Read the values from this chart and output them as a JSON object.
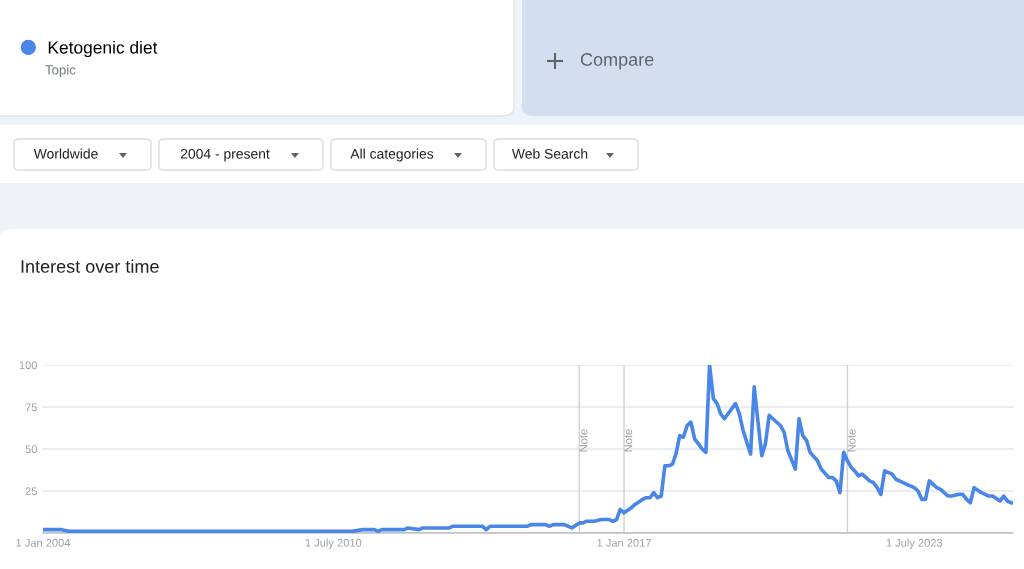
{
  "chart_data": {
    "type": "line",
    "title": "Interest over time",
    "annotations": [
      "Topic",
      "Compare",
      "Worldwide",
      "2004 - present",
      "All categories",
      "Web Search"
    ],
    "legend": "top left",
    "x": [
      "2004-01",
      "2004-06",
      "2004-08",
      "2010-12",
      "2011-03",
      "2011-06",
      "2011-07",
      "2011-08",
      "2012-02",
      "2012-03",
      "2012-06",
      "2012-07",
      "2013-02",
      "2013-03",
      "2013-11",
      "2013-12",
      "2014-01",
      "2014-11",
      "2014-12",
      "2015-04",
      "2015-05",
      "2015-06",
      "2015-09",
      "2015-11",
      "2016-01",
      "2016-02",
      "2016-03",
      "2016-05",
      "2016-07",
      "2016-09",
      "2016-10",
      "2016-11",
      "2016-12",
      "2017-01",
      "2017-03",
      "2017-04",
      "2017-06",
      "2017-07",
      "2017-08",
      "2017-09",
      "2017-10",
      "2017-11",
      "2017-12",
      "2018-01",
      "2018-02",
      "2018-03",
      "2018-04",
      "2018-05",
      "2018-06",
      "2018-07",
      "2018-08",
      "2018-09",
      "2018-10",
      "2018-11",
      "2018-12",
      "2019-01",
      "2019-02",
      "2019-03",
      "2019-04",
      "2019-05",
      "2019-07",
      "2019-08",
      "2019-09",
      "2019-11",
      "2019-12",
      "2020-01",
      "2020-02",
      "2020-03",
      "2020-04",
      "2020-05",
      "2020-07",
      "2020-08",
      "2020-09",
      "2020-11",
      "2020-12",
      "2021-01",
      "2021-02",
      "2021-03",
      "2021-05",
      "2021-06",
      "2021-08",
      "2021-09",
      "2021-10",
      "2021-11",
      "2021-12",
      "2022-01",
      "2022-02",
      "2022-03",
      "2022-04",
      "2022-05",
      "2022-07",
      "2022-08",
      "2022-09",
      "2022-10",
      "2022-11",
      "2023-01",
      "2023-02",
      "2023-04",
      "2023-05",
      "2023-07",
      "2023-08",
      "2023-09",
      "2023-10",
      "2023-11",
      "2024-01",
      "2024-02",
      "2024-04",
      "2024-05",
      "2024-07",
      "2024-08",
      "2024-09",
      "2024-10",
      "2024-11",
      "2025-01",
      "2025-03",
      "2025-04",
      "2025-06",
      "2025-07",
      "2025-08",
      "2025-09"
    ],
    "series": [
      {
        "name": "Ketogenic diet",
        "color": "#4a86e8",
        "values": [
          2,
          2,
          1,
          1,
          2,
          2,
          1,
          2,
          2,
          3,
          2,
          3,
          3,
          4,
          4,
          2,
          4,
          4,
          5,
          5,
          4,
          5,
          5,
          3,
          6,
          6,
          7,
          7,
          8,
          8,
          7,
          8,
          14,
          12,
          15,
          17,
          20,
          21,
          21,
          24,
          21,
          22,
          40,
          40,
          41,
          47,
          58,
          57,
          64,
          66,
          56,
          53,
          50,
          48,
          100,
          80,
          77,
          71,
          68,
          71,
          77,
          71,
          61,
          47,
          87,
          66,
          46,
          53,
          70,
          68,
          64,
          60,
          49,
          38,
          68,
          58,
          55,
          48,
          43,
          38,
          33,
          33,
          31,
          24,
          48,
          43,
          39,
          37,
          34,
          35,
          31,
          30,
          27,
          23,
          37,
          35,
          32,
          30,
          29,
          27,
          25,
          20,
          20,
          31,
          27,
          26,
          22,
          22,
          23,
          23,
          20,
          18,
          27,
          24,
          22,
          22,
          19,
          22,
          19,
          18
        ]
      }
    ],
    "xlim": [
      "2004-01-01",
      "2025-09-15"
    ],
    "xticks": [
      {
        "value": "2004-01-01",
        "label": "1 Jan 2004"
      },
      {
        "value": "2010-07-01",
        "label": "1 July 2010"
      },
      {
        "value": "2017-01-01",
        "label": "1 Jan 2017"
      },
      {
        "value": "2023-07-01",
        "label": "1 July 2023"
      }
    ],
    "ylim": [
      0,
      100
    ],
    "yticks": [
      {
        "value": 0,
        "label": null
      },
      25,
      50,
      75,
      100
    ],
    "grid": "y",
    "marker": "none",
    "line_style": "solid",
    "ref_lines": [
      {
        "axis": "x",
        "value": "2016-01-01",
        "label": "Note",
        "color": "#d0d0d0"
      },
      {
        "axis": "x",
        "value": "2017-01-01",
        "label": "Note",
        "color": "#d0d0d0"
      },
      {
        "axis": "x",
        "value": "2022-01-01",
        "label": "Note",
        "color": "#d0d0d0"
      }
    ]
  }
}
